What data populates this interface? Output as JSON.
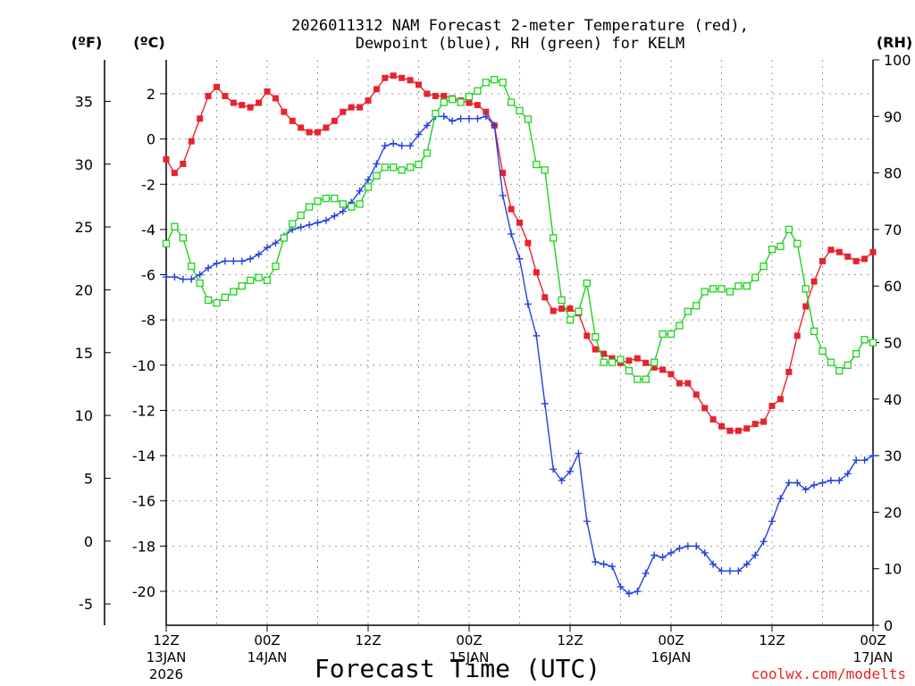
{
  "chart_data": {
    "type": "line",
    "title_line1": "2026011312 NAM Forecast 2-meter Temperature (red),",
    "title_line2": "Dewpoint (blue), RH (green) for KELM",
    "xlabel": "Forecast Time (UTC)",
    "credit": "coolwx.com/modelts",
    "axis_labels": {
      "fahrenheit": "(ºF)",
      "celsius": "(ºC)",
      "rh": "(RH)"
    },
    "x_range_hours": [
      0,
      84
    ],
    "celsius_range": [
      -21.5,
      3.5
    ],
    "rh_range": [
      0,
      100
    ],
    "fahrenheit_ticks": [
      "35",
      "30",
      "25",
      "20",
      "15",
      "10",
      "5",
      "0",
      "-5"
    ],
    "fahrenheit_tick_values": [
      35,
      30,
      25,
      20,
      15,
      10,
      5,
      0,
      -5
    ],
    "celsius_ticks": [
      "2",
      "0",
      "-2",
      "-4",
      "-6",
      "-8",
      "-10",
      "-12",
      "-14",
      "-16",
      "-18",
      "-20"
    ],
    "celsius_tick_values": [
      2,
      0,
      -2,
      -4,
      -6,
      -8,
      -10,
      -12,
      -14,
      -16,
      -18,
      -20
    ],
    "rh_ticks": [
      "100",
      "90",
      "80",
      "70",
      "60",
      "50",
      "40",
      "30",
      "20",
      "10",
      "0"
    ],
    "rh_tick_values": [
      100,
      90,
      80,
      70,
      60,
      50,
      40,
      30,
      20,
      10,
      0
    ],
    "x_ticks": [
      {
        "hour": 0,
        "label": "12Z",
        "date": "13JAN",
        "year": "2026"
      },
      {
        "hour": 12,
        "label": "00Z",
        "date": "14JAN",
        "year": ""
      },
      {
        "hour": 24,
        "label": "12Z",
        "date": "",
        "year": ""
      },
      {
        "hour": 36,
        "label": "00Z",
        "date": "15JAN",
        "year": ""
      },
      {
        "hour": 48,
        "label": "12Z",
        "date": "",
        "year": ""
      },
      {
        "hour": 60,
        "label": "00Z",
        "date": "16JAN",
        "year": ""
      },
      {
        "hour": 72,
        "label": "12Z",
        "date": "",
        "year": ""
      },
      {
        "hour": 84,
        "label": "00Z",
        "date": "17JAN",
        "year": ""
      }
    ],
    "series": [
      {
        "name": "Temperature",
        "units": "C",
        "color": "#e8232e",
        "marker": "filled-square",
        "values": [
          [
            0,
            -0.9
          ],
          [
            1,
            -1.5
          ],
          [
            2,
            -1.1
          ],
          [
            3,
            -0.1
          ],
          [
            4,
            0.9
          ],
          [
            5,
            1.9
          ],
          [
            6,
            2.3
          ],
          [
            7,
            1.9
          ],
          [
            8,
            1.6
          ],
          [
            9,
            1.5
          ],
          [
            10,
            1.4
          ],
          [
            11,
            1.6
          ],
          [
            12,
            2.1
          ],
          [
            13,
            1.8
          ],
          [
            14,
            1.2
          ],
          [
            15,
            0.8
          ],
          [
            16,
            0.5
          ],
          [
            17,
            0.3
          ],
          [
            18,
            0.3
          ],
          [
            19,
            0.5
          ],
          [
            20,
            0.8
          ],
          [
            21,
            1.2
          ],
          [
            22,
            1.4
          ],
          [
            23,
            1.4
          ],
          [
            24,
            1.7
          ],
          [
            25,
            2.2
          ],
          [
            26,
            2.7
          ],
          [
            27,
            2.8
          ],
          [
            28,
            2.7
          ],
          [
            29,
            2.6
          ],
          [
            30,
            2.4
          ],
          [
            31,
            2.0
          ],
          [
            32,
            1.9
          ],
          [
            33,
            1.9
          ],
          [
            34,
            1.8
          ],
          [
            35,
            1.7
          ],
          [
            36,
            1.6
          ],
          [
            37,
            1.5
          ],
          [
            38,
            1.2
          ],
          [
            39,
            0.6
          ],
          [
            40,
            -1.5
          ],
          [
            41,
            -3.1
          ],
          [
            42,
            -3.7
          ],
          [
            43,
            -4.6
          ],
          [
            44,
            -5.9
          ],
          [
            45,
            -7.0
          ],
          [
            46,
            -7.6
          ],
          [
            47,
            -7.5
          ],
          [
            48,
            -7.5
          ],
          [
            49,
            -7.7
          ],
          [
            50,
            -8.7
          ],
          [
            51,
            -9.3
          ],
          [
            52,
            -9.5
          ],
          [
            53,
            -9.7
          ],
          [
            54,
            -9.9
          ],
          [
            55,
            -9.8
          ],
          [
            56,
            -9.7
          ],
          [
            57,
            -9.9
          ],
          [
            58,
            -10.1
          ],
          [
            59,
            -10.2
          ],
          [
            60,
            -10.4
          ],
          [
            61,
            -10.8
          ],
          [
            62,
            -10.8
          ],
          [
            63,
            -11.3
          ],
          [
            64,
            -11.9
          ],
          [
            65,
            -12.4
          ],
          [
            66,
            -12.7
          ],
          [
            67,
            -12.9
          ],
          [
            68,
            -12.9
          ],
          [
            69,
            -12.8
          ],
          [
            70,
            -12.6
          ],
          [
            71,
            -12.5
          ],
          [
            72,
            -11.8
          ],
          [
            73,
            -11.5
          ],
          [
            74,
            -10.3
          ],
          [
            75,
            -8.7
          ],
          [
            76,
            -7.4
          ],
          [
            77,
            -6.3
          ],
          [
            78,
            -5.4
          ],
          [
            79,
            -4.9
          ],
          [
            80,
            -5.0
          ],
          [
            81,
            -5.2
          ],
          [
            82,
            -5.4
          ],
          [
            83,
            -5.3
          ],
          [
            84,
            -5.0
          ]
        ]
      },
      {
        "name": "Dewpoint",
        "units": "C",
        "color": "#2440e0",
        "marker": "plus",
        "values": [
          [
            0,
            -6.1
          ],
          [
            1,
            -6.1
          ],
          [
            2,
            -6.2
          ],
          [
            3,
            -6.2
          ],
          [
            4,
            -6.0
          ],
          [
            5,
            -5.7
          ],
          [
            6,
            -5.5
          ],
          [
            7,
            -5.4
          ],
          [
            8,
            -5.4
          ],
          [
            9,
            -5.4
          ],
          [
            10,
            -5.3
          ],
          [
            11,
            -5.1
          ],
          [
            12,
            -4.8
          ],
          [
            13,
            -4.6
          ],
          [
            14,
            -4.3
          ],
          [
            15,
            -4.0
          ],
          [
            16,
            -3.9
          ],
          [
            17,
            -3.8
          ],
          [
            18,
            -3.7
          ],
          [
            19,
            -3.6
          ],
          [
            20,
            -3.4
          ],
          [
            21,
            -3.2
          ],
          [
            22,
            -2.8
          ],
          [
            23,
            -2.3
          ],
          [
            24,
            -1.8
          ],
          [
            25,
            -1.1
          ],
          [
            26,
            -0.3
          ],
          [
            27,
            -0.2
          ],
          [
            28,
            -0.3
          ],
          [
            29,
            -0.3
          ],
          [
            30,
            0.2
          ],
          [
            31,
            0.6
          ],
          [
            32,
            1.0
          ],
          [
            33,
            1.0
          ],
          [
            34,
            0.8
          ],
          [
            35,
            0.9
          ],
          [
            36,
            0.9
          ],
          [
            37,
            0.9
          ],
          [
            38,
            1.0
          ],
          [
            39,
            0.6
          ],
          [
            40,
            -2.5
          ],
          [
            41,
            -4.2
          ],
          [
            42,
            -5.3
          ],
          [
            43,
            -7.3
          ],
          [
            44,
            -8.7
          ],
          [
            45,
            -11.7
          ],
          [
            46,
            -14.6
          ],
          [
            47,
            -15.1
          ],
          [
            48,
            -14.7
          ],
          [
            49,
            -13.9
          ],
          [
            50,
            -16.9
          ],
          [
            51,
            -18.7
          ],
          [
            52,
            -18.8
          ],
          [
            53,
            -18.9
          ],
          [
            54,
            -19.8
          ],
          [
            55,
            -20.1
          ],
          [
            56,
            -20.0
          ],
          [
            57,
            -19.2
          ],
          [
            58,
            -18.4
          ],
          [
            59,
            -18.5
          ],
          [
            60,
            -18.3
          ],
          [
            61,
            -18.1
          ],
          [
            62,
            -18.0
          ],
          [
            63,
            -18.0
          ],
          [
            64,
            -18.3
          ],
          [
            65,
            -18.8
          ],
          [
            66,
            -19.1
          ],
          [
            67,
            -19.1
          ],
          [
            68,
            -19.1
          ],
          [
            69,
            -18.8
          ],
          [
            70,
            -18.4
          ],
          [
            71,
            -17.8
          ],
          [
            72,
            -16.9
          ],
          [
            73,
            -15.9
          ],
          [
            74,
            -15.2
          ],
          [
            75,
            -15.2
          ],
          [
            76,
            -15.5
          ],
          [
            77,
            -15.3
          ],
          [
            78,
            -15.2
          ],
          [
            79,
            -15.1
          ],
          [
            80,
            -15.1
          ],
          [
            81,
            -14.8
          ],
          [
            82,
            -14.2
          ],
          [
            83,
            -14.2
          ],
          [
            84,
            -14.0
          ]
        ]
      },
      {
        "name": "RH",
        "units": "%",
        "color": "#1ed21e",
        "marker": "open-square",
        "values": [
          [
            0,
            67.5
          ],
          [
            1,
            70.5
          ],
          [
            2,
            68.5
          ],
          [
            3,
            63.5
          ],
          [
            4,
            60.5
          ],
          [
            5,
            57.5
          ],
          [
            6,
            57.0
          ],
          [
            7,
            58.0
          ],
          [
            8,
            59.0
          ],
          [
            9,
            60.0
          ],
          [
            10,
            61.0
          ],
          [
            11,
            61.5
          ],
          [
            12,
            61.0
          ],
          [
            13,
            63.5
          ],
          [
            14,
            68.5
          ],
          [
            15,
            71.0
          ],
          [
            16,
            72.5
          ],
          [
            17,
            74.0
          ],
          [
            18,
            75.0
          ],
          [
            19,
            75.5
          ],
          [
            20,
            75.5
          ],
          [
            21,
            74.5
          ],
          [
            22,
            74.0
          ],
          [
            23,
            74.5
          ],
          [
            24,
            77.5
          ],
          [
            25,
            79.5
          ],
          [
            26,
            81.0
          ],
          [
            27,
            81.0
          ],
          [
            28,
            80.5
          ],
          [
            29,
            81.0
          ],
          [
            30,
            81.5
          ],
          [
            31,
            83.5
          ],
          [
            32,
            90.5
          ],
          [
            33,
            92.5
          ],
          [
            34,
            93.0
          ],
          [
            35,
            92.5
          ],
          [
            36,
            93.5
          ],
          [
            37,
            94.5
          ],
          [
            38,
            96.0
          ],
          [
            39,
            96.5
          ],
          [
            40,
            96.0
          ],
          [
            41,
            92.5
          ],
          [
            42,
            91.0
          ],
          [
            43,
            89.5
          ],
          [
            44,
            81.5
          ],
          [
            45,
            80.5
          ],
          [
            46,
            68.5
          ],
          [
            47,
            57.5
          ],
          [
            48,
            54.0
          ],
          [
            49,
            55.5
          ],
          [
            50,
            60.5
          ],
          [
            51,
            51.0
          ],
          [
            52,
            46.5
          ],
          [
            53,
            46.5
          ],
          [
            54,
            47.0
          ],
          [
            55,
            45.0
          ],
          [
            56,
            43.5
          ],
          [
            57,
            43.5
          ],
          [
            58,
            46.5
          ],
          [
            59,
            51.5
          ],
          [
            60,
            51.5
          ],
          [
            61,
            53.0
          ],
          [
            62,
            55.5
          ],
          [
            63,
            56.5
          ],
          [
            64,
            59.0
          ],
          [
            65,
            59.5
          ],
          [
            66,
            59.5
          ],
          [
            67,
            59.0
          ],
          [
            68,
            60.0
          ],
          [
            69,
            60.0
          ],
          [
            70,
            61.5
          ],
          [
            71,
            63.5
          ],
          [
            72,
            66.5
          ],
          [
            73,
            67.0
          ],
          [
            74,
            70.0
          ],
          [
            75,
            67.5
          ],
          [
            76,
            59.5
          ],
          [
            77,
            52.0
          ],
          [
            78,
            48.5
          ],
          [
            79,
            46.5
          ],
          [
            80,
            45.0
          ],
          [
            81,
            46.0
          ],
          [
            82,
            48.0
          ],
          [
            83,
            50.5
          ],
          [
            84,
            50.0
          ]
        ]
      }
    ]
  }
}
